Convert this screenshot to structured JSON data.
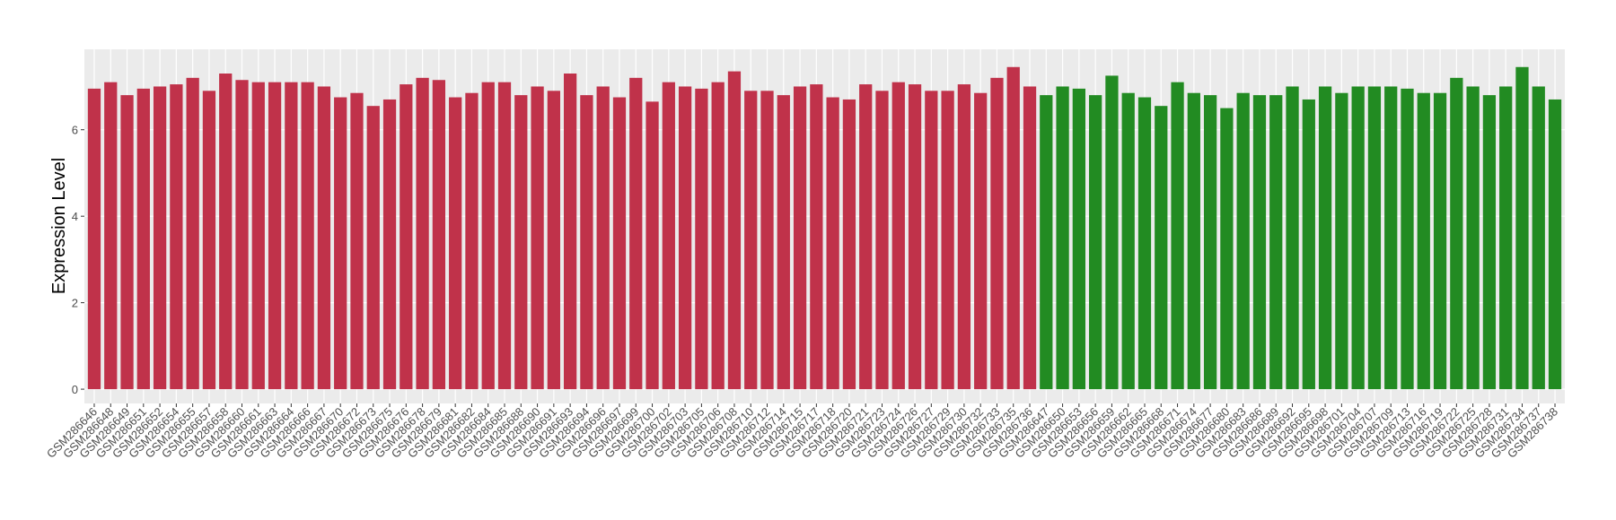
{
  "chart_data": {
    "type": "bar",
    "y_label": "Expression Level",
    "categories": [
      "GSM286646",
      "GSM286648",
      "GSM286649",
      "GSM286651",
      "GSM286652",
      "GSM286654",
      "GSM286655",
      "GSM286657",
      "GSM286658",
      "GSM286660",
      "GSM286661",
      "GSM286663",
      "GSM286664",
      "GSM286666",
      "GSM286667",
      "GSM286670",
      "GSM286672",
      "GSM286673",
      "GSM286675",
      "GSM286676",
      "GSM286678",
      "GSM286679",
      "GSM286681",
      "GSM286682",
      "GSM286684",
      "GSM286685",
      "GSM286688",
      "GSM286690",
      "GSM286691",
      "GSM286693",
      "GSM286694",
      "GSM286696",
      "GSM286697",
      "GSM286699",
      "GSM286700",
      "GSM286702",
      "GSM286703",
      "GSM286705",
      "GSM286706",
      "GSM286708",
      "GSM286710",
      "GSM286712",
      "GSM286714",
      "GSM286715",
      "GSM286717",
      "GSM286718",
      "GSM286720",
      "GSM286721",
      "GSM286723",
      "GSM286724",
      "GSM286726",
      "GSM286727",
      "GSM286729",
      "GSM286730",
      "GSM286732",
      "GSM286733",
      "GSM286735",
      "GSM286736",
      "GSM286647",
      "GSM286650",
      "GSM286653",
      "GSM286656",
      "GSM286659",
      "GSM286662",
      "GSM286665",
      "GSM286668",
      "GSM286671",
      "GSM286674",
      "GSM286677",
      "GSM286680",
      "GSM286683",
      "GSM286686",
      "GSM286689",
      "GSM286692",
      "GSM286695",
      "GSM286698",
      "GSM286701",
      "GSM286704",
      "GSM286707",
      "GSM286709",
      "GSM286713",
      "GSM286716",
      "GSM286719",
      "GSM286722",
      "GSM286725",
      "GSM286728",
      "GSM286731",
      "GSM286734",
      "GSM286737",
      "GSM286738"
    ],
    "values": [
      6.95,
      7.1,
      6.8,
      6.95,
      7.0,
      7.05,
      7.2,
      6.9,
      7.3,
      7.15,
      7.1,
      7.1,
      7.1,
      7.1,
      7.0,
      6.75,
      6.85,
      6.55,
      6.7,
      7.05,
      7.2,
      7.15,
      6.75,
      6.85,
      7.1,
      7.1,
      6.8,
      7.0,
      6.9,
      7.3,
      6.8,
      7.0,
      6.75,
      7.2,
      6.65,
      7.1,
      7.0,
      6.95,
      7.1,
      7.35,
      6.9,
      6.9,
      6.8,
      7.0,
      7.05,
      6.75,
      6.7,
      7.05,
      6.9,
      7.1,
      7.05,
      6.9,
      6.9,
      7.05,
      6.85,
      7.2,
      7.45,
      7.0,
      6.8,
      7.0,
      6.95,
      6.8,
      7.25,
      6.85,
      6.75,
      6.55,
      7.1,
      6.85,
      6.8,
      6.5,
      6.85,
      6.8,
      6.8,
      7.0,
      6.7,
      7.0,
      6.85,
      7.0,
      7.0,
      7.0,
      6.95,
      6.85,
      6.85,
      7.2,
      7.0,
      6.8,
      7.0,
      7.45,
      7.0,
      6.7
    ],
    "colors": [
      "#c0324a",
      "#c0324a",
      "#c0324a",
      "#c0324a",
      "#c0324a",
      "#c0324a",
      "#c0324a",
      "#c0324a",
      "#c0324a",
      "#c0324a",
      "#c0324a",
      "#c0324a",
      "#c0324a",
      "#c0324a",
      "#c0324a",
      "#c0324a",
      "#c0324a",
      "#c0324a",
      "#c0324a",
      "#c0324a",
      "#c0324a",
      "#c0324a",
      "#c0324a",
      "#c0324a",
      "#c0324a",
      "#c0324a",
      "#c0324a",
      "#c0324a",
      "#c0324a",
      "#c0324a",
      "#c0324a",
      "#c0324a",
      "#c0324a",
      "#c0324a",
      "#c0324a",
      "#c0324a",
      "#c0324a",
      "#c0324a",
      "#c0324a",
      "#c0324a",
      "#c0324a",
      "#c0324a",
      "#c0324a",
      "#c0324a",
      "#c0324a",
      "#c0324a",
      "#c0324a",
      "#c0324a",
      "#c0324a",
      "#c0324a",
      "#c0324a",
      "#c0324a",
      "#c0324a",
      "#c0324a",
      "#c0324a",
      "#c0324a",
      "#c0324a",
      "#c0324a",
      "#228b22",
      "#228b22",
      "#228b22",
      "#228b22",
      "#228b22",
      "#228b22",
      "#228b22",
      "#228b22",
      "#228b22",
      "#228b22",
      "#228b22",
      "#228b22",
      "#228b22",
      "#228b22",
      "#228b22",
      "#228b22",
      "#228b22",
      "#228b22",
      "#228b22",
      "#228b22",
      "#228b22",
      "#228b22",
      "#228b22",
      "#228b22",
      "#228b22",
      "#228b22",
      "#228b22",
      "#228b22",
      "#228b22",
      "#228b22",
      "#228b22",
      "#228b22"
    ],
    "ylim": [
      -0.33,
      7.86
    ],
    "yticks": [
      0,
      2,
      4,
      6
    ],
    "grid": true
  }
}
